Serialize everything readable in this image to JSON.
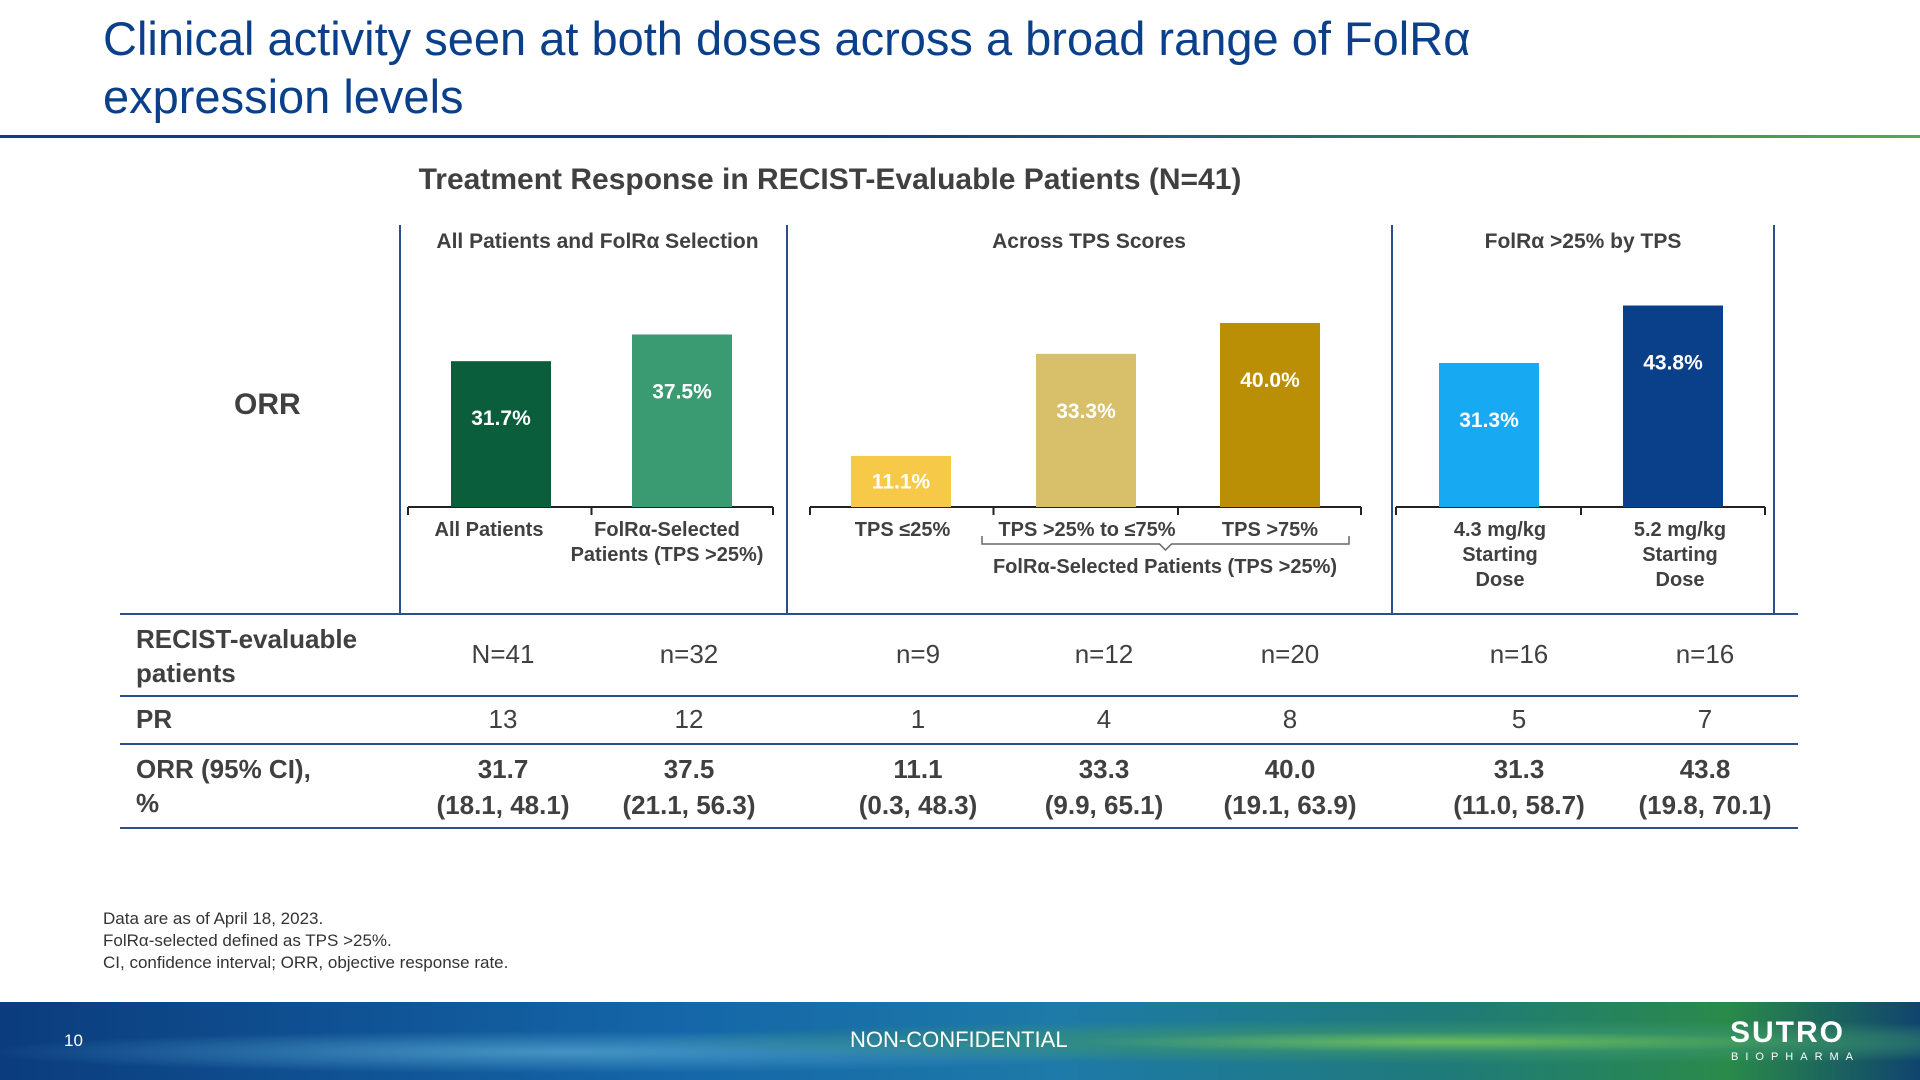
{
  "slide": {
    "title": "Clinical activity seen at both doses across a broad range of FolRα expression levels",
    "page_number": "10",
    "confidentiality": "NON-CONFIDENTIAL",
    "logo_main": "SUTRO",
    "logo_sub": "BIOPHARMA"
  },
  "chart_data": {
    "type": "bar",
    "title": "Treatment Response in RECIST-Evaluable Patients (N=41)",
    "ylabel": "ORR",
    "ylim": [
      0,
      50
    ],
    "panels": [
      {
        "title": "All Patients and FolRα Selection",
        "bars": [
          {
            "category": "All Patients",
            "value": 31.7,
            "value_label": "31.7%",
            "color": "#0b5e3c"
          },
          {
            "category": "FolRα-Selected Patients (TPS >25%)",
            "value": 37.5,
            "value_label": "37.5%",
            "color": "#3a9a72"
          }
        ]
      },
      {
        "title": "Across TPS Scores",
        "group_label": "FolRα-Selected Patients (TPS >25%)",
        "bars": [
          {
            "category": "TPS ≤25%",
            "value": 11.1,
            "value_label": "11.1%",
            "color": "#f7c948"
          },
          {
            "category": "TPS >25% to ≤75%",
            "value": 33.3,
            "value_label": "33.3%",
            "color": "#d8bf6a"
          },
          {
            "category": "TPS >75%",
            "value": 40.0,
            "value_label": "40.0%",
            "color": "#bb8f05"
          }
        ]
      },
      {
        "title": "FolRα >25% by TPS",
        "bars": [
          {
            "category": "4.3 mg/kg Starting Dose",
            "value": 31.3,
            "value_label": "31.3%",
            "color": "#17a9f2"
          },
          {
            "category": "5.2 mg/kg Starting Dose",
            "value": 43.8,
            "value_label": "43.8%",
            "color": "#0a3f8a"
          }
        ]
      }
    ],
    "table": {
      "rows": [
        {
          "label": "RECIST-evaluable patients",
          "values": [
            "N=41",
            "n=32",
            "n=9",
            "n=12",
            "n=20",
            "n=16",
            "n=16"
          ]
        },
        {
          "label": "PR",
          "values": [
            "13",
            "12",
            "1",
            "4",
            "8",
            "5",
            "7"
          ]
        },
        {
          "label": "ORR (95% CI), %",
          "values": [
            "31.7",
            "37.5",
            "11.1",
            "33.3",
            "40.0",
            "31.3",
            "43.8"
          ],
          "ci": [
            "(18.1, 48.1)",
            "(21.1, 56.3)",
            "(0.3, 48.3)",
            "(9.9, 65.1)",
            "(19.1, 63.9)",
            "(11.0, 58.7)",
            "(19.8, 70.1)"
          ]
        }
      ]
    }
  },
  "footnotes": [
    "Data are as of April 18, 2023.",
    "FolRα-selected defined as TPS >25%.",
    "CI, confidence interval; ORR, objective response rate."
  ]
}
